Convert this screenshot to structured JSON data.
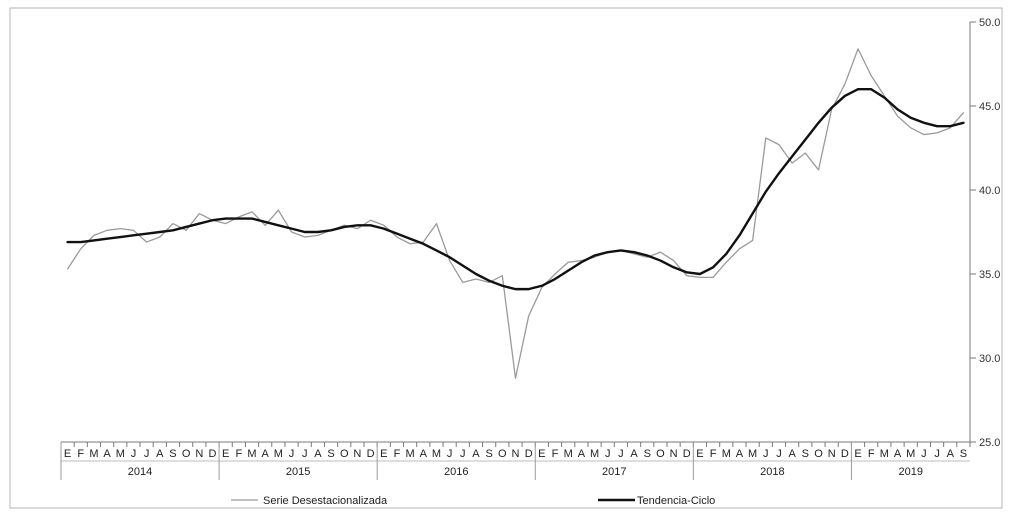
{
  "chart_data": {
    "type": "line",
    "title": "",
    "xlabel": "",
    "ylabel": "",
    "x_start": "2014-01",
    "x_end": "2019-09",
    "month_ticks": [
      "E",
      "F",
      "M",
      "A",
      "M",
      "J",
      "J",
      "A",
      "S",
      "O",
      "N",
      "D",
      "E",
      "F",
      "M",
      "A",
      "M",
      "J",
      "J",
      "A",
      "S",
      "O",
      "N",
      "D",
      "E",
      "F",
      "M",
      "A",
      "M",
      "J",
      "J",
      "A",
      "S",
      "O",
      "N",
      "D",
      "E",
      "F",
      "M",
      "A",
      "M",
      "J",
      "J",
      "A",
      "S",
      "O",
      "N",
      "D",
      "E",
      "F",
      "M",
      "A",
      "M",
      "J",
      "J",
      "A",
      "S",
      "O",
      "N",
      "D",
      "E",
      "F",
      "M",
      "A",
      "M",
      "J",
      "J",
      "A",
      "S"
    ],
    "years": [
      {
        "label": "2014",
        "months": 12
      },
      {
        "label": "2015",
        "months": 12
      },
      {
        "label": "2016",
        "months": 12
      },
      {
        "label": "2017",
        "months": 12
      },
      {
        "label": "2018",
        "months": 12
      },
      {
        "label": "2019",
        "months": 9
      }
    ],
    "ylim": [
      25.0,
      50.0
    ],
    "yticks": [
      "25.0",
      "30.0",
      "35.0",
      "40.0",
      "45.0",
      "50.0"
    ],
    "y_axis_position": "right",
    "grid": false,
    "legend_position": "bottom",
    "series": [
      {
        "name": "Serie Desestacionalizada",
        "color": "#9a9a9a",
        "values": [
          35.3,
          36.5,
          37.3,
          37.6,
          37.7,
          37.6,
          36.9,
          37.2,
          38.0,
          37.6,
          38.6,
          38.2,
          38.0,
          38.4,
          38.7,
          37.9,
          38.8,
          37.5,
          37.2,
          37.3,
          37.6,
          37.9,
          37.7,
          38.2,
          37.9,
          37.2,
          36.8,
          36.9,
          38.0,
          35.8,
          34.5,
          34.7,
          34.5,
          34.9,
          28.8,
          32.5,
          34.2,
          35.0,
          35.7,
          35.8,
          36.0,
          36.3,
          36.4,
          36.2,
          36.0,
          36.3,
          35.8,
          34.9,
          34.8,
          34.8,
          35.7,
          36.5,
          37.0,
          43.1,
          42.7,
          41.6,
          42.2,
          41.2,
          44.8,
          46.3,
          48.4,
          46.8,
          45.6,
          44.4,
          43.7,
          43.3,
          43.4,
          43.7,
          44.6
        ]
      },
      {
        "name": "Tendencia-Ciclo",
        "color": "#111111",
        "values": [
          36.9,
          36.9,
          37.0,
          37.1,
          37.2,
          37.3,
          37.4,
          37.5,
          37.6,
          37.8,
          38.0,
          38.2,
          38.3,
          38.3,
          38.3,
          38.1,
          37.9,
          37.7,
          37.5,
          37.5,
          37.6,
          37.8,
          37.9,
          37.9,
          37.7,
          37.4,
          37.1,
          36.8,
          36.4,
          36.0,
          35.5,
          35.0,
          34.6,
          34.3,
          34.1,
          34.1,
          34.3,
          34.7,
          35.2,
          35.7,
          36.1,
          36.3,
          36.4,
          36.3,
          36.1,
          35.8,
          35.4,
          35.1,
          35.0,
          35.4,
          36.2,
          37.3,
          38.6,
          39.9,
          41.0,
          42.0,
          43.0,
          44.0,
          44.9,
          45.6,
          46.0,
          46.0,
          45.5,
          44.8,
          44.3,
          44.0,
          43.8,
          43.8,
          44.0
        ]
      }
    ]
  }
}
